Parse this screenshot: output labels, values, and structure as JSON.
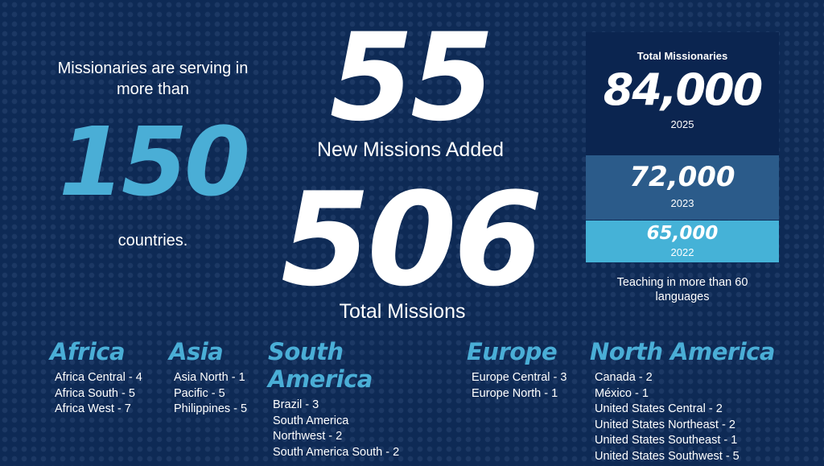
{
  "intro": {
    "text": "Missionaries are serving in more than",
    "countries_number": "150",
    "countries_label": "countries."
  },
  "new_missions": {
    "number": "55",
    "label": "New Missions Added"
  },
  "total_missions": {
    "number": "506",
    "label": "Total Missions"
  },
  "missionaries": {
    "title": "Total Missionaries",
    "years": [
      {
        "count": "84,000",
        "year": "2025"
      },
      {
        "count": "72,000",
        "year": "2023"
      },
      {
        "count": "65,000",
        "year": "2022"
      }
    ]
  },
  "languages": "Teaching in more than 60 languages",
  "regions": [
    {
      "name": "Africa",
      "missions": [
        "Africa Central - 4",
        "Africa South - 5",
        "Africa West - 7"
      ]
    },
    {
      "name": "Asia",
      "missions": [
        "Asia North - 1",
        "Pacific - 5",
        "Philippines - 5"
      ]
    },
    {
      "name": "South America",
      "missions": [
        "Brazil - 3",
        "South America Northwest - 2",
        "South America South - 2"
      ]
    },
    {
      "name": "Europe",
      "missions": [
        "Europe Central - 3",
        "Europe North - 1"
      ]
    },
    {
      "name": "North America",
      "missions": [
        "Canada - 2",
        "México - 1",
        "United States Central - 2",
        "United States Northeast - 2",
        "United States Southeast - 1",
        "United States Southwest - 5"
      ]
    }
  ]
}
